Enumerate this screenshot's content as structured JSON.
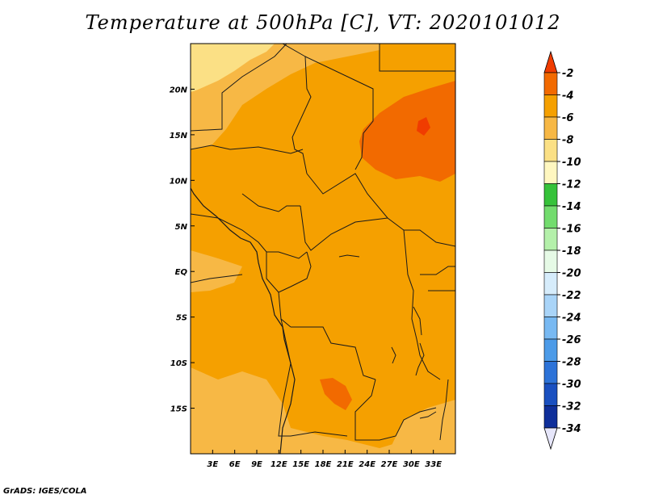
{
  "title": "Temperature at 500hPa [C], VT: 2020101012",
  "credit": "GrADS: IGES/COLA",
  "map": {
    "lon_range": [
      0,
      36
    ],
    "lat_range": [
      -20,
      25
    ],
    "lon_ticks": [
      {
        "value": 3,
        "label": "3E"
      },
      {
        "value": 6,
        "label": "6E"
      },
      {
        "value": 9,
        "label": "9E"
      },
      {
        "value": 12,
        "label": "12E"
      },
      {
        "value": 15,
        "label": "15E"
      },
      {
        "value": 18,
        "label": "18E"
      },
      {
        "value": 21,
        "label": "21E"
      },
      {
        "value": 24,
        "label": "24E"
      },
      {
        "value": 27,
        "label": "27E"
      },
      {
        "value": 30,
        "label": "30E"
      },
      {
        "value": 33,
        "label": "33E"
      }
    ],
    "lat_ticks": [
      {
        "value": 20,
        "label": "20N"
      },
      {
        "value": 15,
        "label": "15N"
      },
      {
        "value": 10,
        "label": "10N"
      },
      {
        "value": 5,
        "label": "5N"
      },
      {
        "value": 0,
        "label": "EQ"
      },
      {
        "value": -5,
        "label": "5S"
      },
      {
        "value": -10,
        "label": "10S"
      },
      {
        "value": -15,
        "label": "15S"
      }
    ],
    "field_description_colors": {
      "base": "#f5a000",
      "warm": "#f26a00",
      "cool": "#f7b845",
      "coolest": "#fbe085"
    }
  },
  "colorbar": {
    "labels": [
      "-2",
      "-4",
      "-6",
      "-8",
      "-10",
      "-12",
      "-14",
      "-16",
      "-18",
      "-20",
      "-22",
      "-24",
      "-26",
      "-28",
      "-30",
      "-32",
      "-34"
    ],
    "colors": [
      "#f03c00",
      "#f26a00",
      "#f5a000",
      "#f7b845",
      "#fbe085",
      "#fff7c0",
      "#36c23a",
      "#73dc6e",
      "#b4f0aa",
      "#e6fae6",
      "#d6ecfb",
      "#a9d4f8",
      "#78b9f2",
      "#4c9be8",
      "#2d73d8",
      "#1a50c0",
      "#0f2f9a",
      "#07166e"
    ],
    "top_arrow_color": "#f03c00",
    "bottom_arrow_color": "#e6e6fa"
  }
}
